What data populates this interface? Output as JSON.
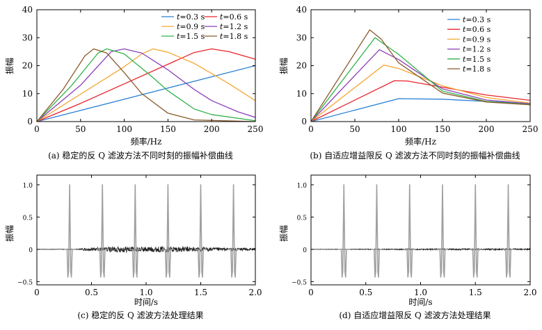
{
  "chart_data": [
    {
      "panel": "a",
      "type": "line",
      "caption": "(a) 稳定的反 Q 滤波方法不同时刻的振幅补偿曲线",
      "xlabel": "频率/Hz",
      "ylabel": "振幅",
      "xlim": [
        0,
        250
      ],
      "ylim": [
        0,
        40
      ],
      "xticks": [
        0,
        50,
        100,
        150,
        200,
        250
      ],
      "yticks": [
        0,
        10,
        20,
        30,
        40
      ],
      "grid": false,
      "legend": "top-right, two columns",
      "legend_prefix": "t",
      "series": [
        {
          "name": "=0.3 s",
          "color": "#2a7fd4",
          "x": [
            0,
            250
          ],
          "y": [
            0,
            20
          ]
        },
        {
          "name": "=0.6 s",
          "color": "#e8232a",
          "x": [
            0,
            50,
            100,
            150,
            180,
            200,
            220,
            240,
            250
          ],
          "y": [
            0,
            6.5,
            13.5,
            20.5,
            24.7,
            26,
            25,
            23.2,
            22.3
          ]
        },
        {
          "name": "=0.9 s",
          "color": "#f2a833",
          "x": [
            0,
            50,
            100,
            120,
            133,
            150,
            180,
            200,
            220,
            250
          ],
          "y": [
            0,
            9.8,
            19.6,
            24.2,
            26,
            24.8,
            20.8,
            17.2,
            13.5,
            7.5
          ]
        },
        {
          "name": "=1.2 s",
          "color": "#8b3fb8",
          "x": [
            0,
            50,
            85,
            100,
            120,
            150,
            180,
            200,
            230,
            250
          ],
          "y": [
            0,
            13,
            25,
            26,
            24.5,
            18.5,
            11.5,
            7.5,
            3.5,
            1.5
          ]
        },
        {
          "name": "=1.5 s",
          "color": "#2fb24a",
          "x": [
            0,
            40,
            70,
            80,
            100,
            130,
            150,
            180,
            200,
            250
          ],
          "y": [
            0,
            13,
            24.5,
            26,
            24.2,
            16.5,
            11,
            4.5,
            2.5,
            0.3
          ]
        },
        {
          "name": "=1.8 s",
          "color": "#8b5a2b",
          "x": [
            0,
            30,
            55,
            65,
            80,
            100,
            120,
            150,
            180,
            250
          ],
          "y": [
            0,
            11.5,
            23.5,
            26,
            24.5,
            17.5,
            10,
            3,
            0.6,
            0
          ]
        }
      ]
    },
    {
      "panel": "b",
      "type": "line",
      "caption": "(b) 自适应增益限反 Q 滤波方法不同时刻的振幅补偿曲线",
      "xlabel": "频率/Hz",
      "ylabel": "振幅",
      "xlim": [
        0,
        250
      ],
      "ylim": [
        0,
        40
      ],
      "xticks": [
        0,
        50,
        100,
        150,
        200,
        250
      ],
      "yticks": [
        0,
        10,
        20,
        30,
        40
      ],
      "grid": false,
      "legend": "top-right, one column",
      "legend_prefix": "t",
      "series": [
        {
          "name": "=0.3 s",
          "color": "#2a7fd4",
          "x": [
            0,
            100,
            150,
            200,
            250
          ],
          "y": [
            0,
            8.2,
            8,
            7.2,
            6.5
          ]
        },
        {
          "name": "=0.6 s",
          "color": "#e8232a",
          "x": [
            0,
            95,
            110,
            150,
            200,
            250
          ],
          "y": [
            0,
            14.6,
            14.5,
            12.3,
            9.5,
            7.6
          ]
        },
        {
          "name": "=0.9 s",
          "color": "#f2a833",
          "x": [
            0,
            83,
            100,
            150,
            200,
            250
          ],
          "y": [
            0,
            20.2,
            19,
            12.8,
            8.6,
            6.6
          ]
        },
        {
          "name": "=1.2 s",
          "color": "#8b3fb8",
          "x": [
            0,
            78,
            100,
            150,
            200,
            250
          ],
          "y": [
            0,
            25.7,
            22.2,
            11.7,
            7.7,
            6.4
          ]
        },
        {
          "name": "=1.5 s",
          "color": "#2fb24a",
          "x": [
            0,
            73,
            100,
            150,
            200,
            250
          ],
          "y": [
            0,
            30,
            24,
            10.9,
            7.2,
            6.1
          ]
        },
        {
          "name": "=1.8 s",
          "color": "#8b5a2b",
          "x": [
            0,
            67,
            80,
            100,
            150,
            200,
            250
          ],
          "y": [
            0,
            32.8,
            29.5,
            21,
            10.2,
            7,
            6
          ]
        }
      ]
    },
    {
      "panel": "c",
      "type": "line",
      "caption": "(c) 稳定的反 Q 滤波方法处理结果",
      "xlabel": "时间/s",
      "ylabel": "振幅",
      "xlim": [
        0,
        2.0
      ],
      "ylim": [
        -0.55,
        1.15
      ],
      "xticks": [
        0,
        0.5,
        1.0,
        1.5,
        2.0
      ],
      "xtick_labels": [
        "0",
        "0.5",
        "1.0",
        "1.5",
        "2.0"
      ],
      "yticks": [
        -0.5,
        0,
        0.5,
        1.0
      ],
      "ytick_labels": [
        "−0.5",
        "0",
        "0.5",
        "1.0"
      ],
      "grid": false,
      "pulse_times": [
        0.3,
        0.6,
        0.9,
        1.2,
        1.5,
        1.8
      ],
      "pulse_peak": 1.0,
      "pulse_trough": -0.43,
      "noise_envelope": {
        "t": [
          0,
          0.35,
          0.45,
          0.6,
          0.7,
          0.8,
          0.9,
          1.0,
          1.2,
          1.4,
          1.6,
          1.8,
          2.0
        ],
        "amp": [
          0.002,
          0.005,
          0.02,
          0.035,
          0.045,
          0.05,
          0.04,
          0.042,
          0.045,
          0.04,
          0.03,
          0.022,
          0.02
        ]
      },
      "series": [
        {
          "color": "#222222"
        },
        {
          "color": "#a0a0a0"
        }
      ]
    },
    {
      "panel": "d",
      "type": "line",
      "caption": "(d) 自适应增益限反 Q 滤波方法处理结果",
      "xlabel": "时间/s",
      "ylabel": "振幅",
      "xlim": [
        0,
        2.0
      ],
      "ylim": [
        -0.55,
        1.15
      ],
      "xticks": [
        0,
        0.5,
        1.0,
        1.5,
        2.0
      ],
      "xtick_labels": [
        "0",
        "0.5",
        "1.0",
        "1.5",
        "2.0"
      ],
      "yticks": [
        -0.5,
        0,
        0.5,
        1.0
      ],
      "ytick_labels": [
        "−0.5",
        "0",
        "0.5",
        "1.0"
      ],
      "grid": false,
      "pulse_times": [
        0.3,
        0.6,
        0.9,
        1.2,
        1.5,
        1.8
      ],
      "pulse_peak": 1.0,
      "pulse_trough": -0.43,
      "noise_envelope": {
        "t": [
          0,
          0.4,
          0.8,
          1.2,
          1.6,
          2.0
        ],
        "amp": [
          0.002,
          0.004,
          0.008,
          0.01,
          0.012,
          0.012
        ]
      },
      "series": [
        {
          "color": "#222222"
        },
        {
          "color": "#a0a0a0"
        }
      ]
    }
  ]
}
